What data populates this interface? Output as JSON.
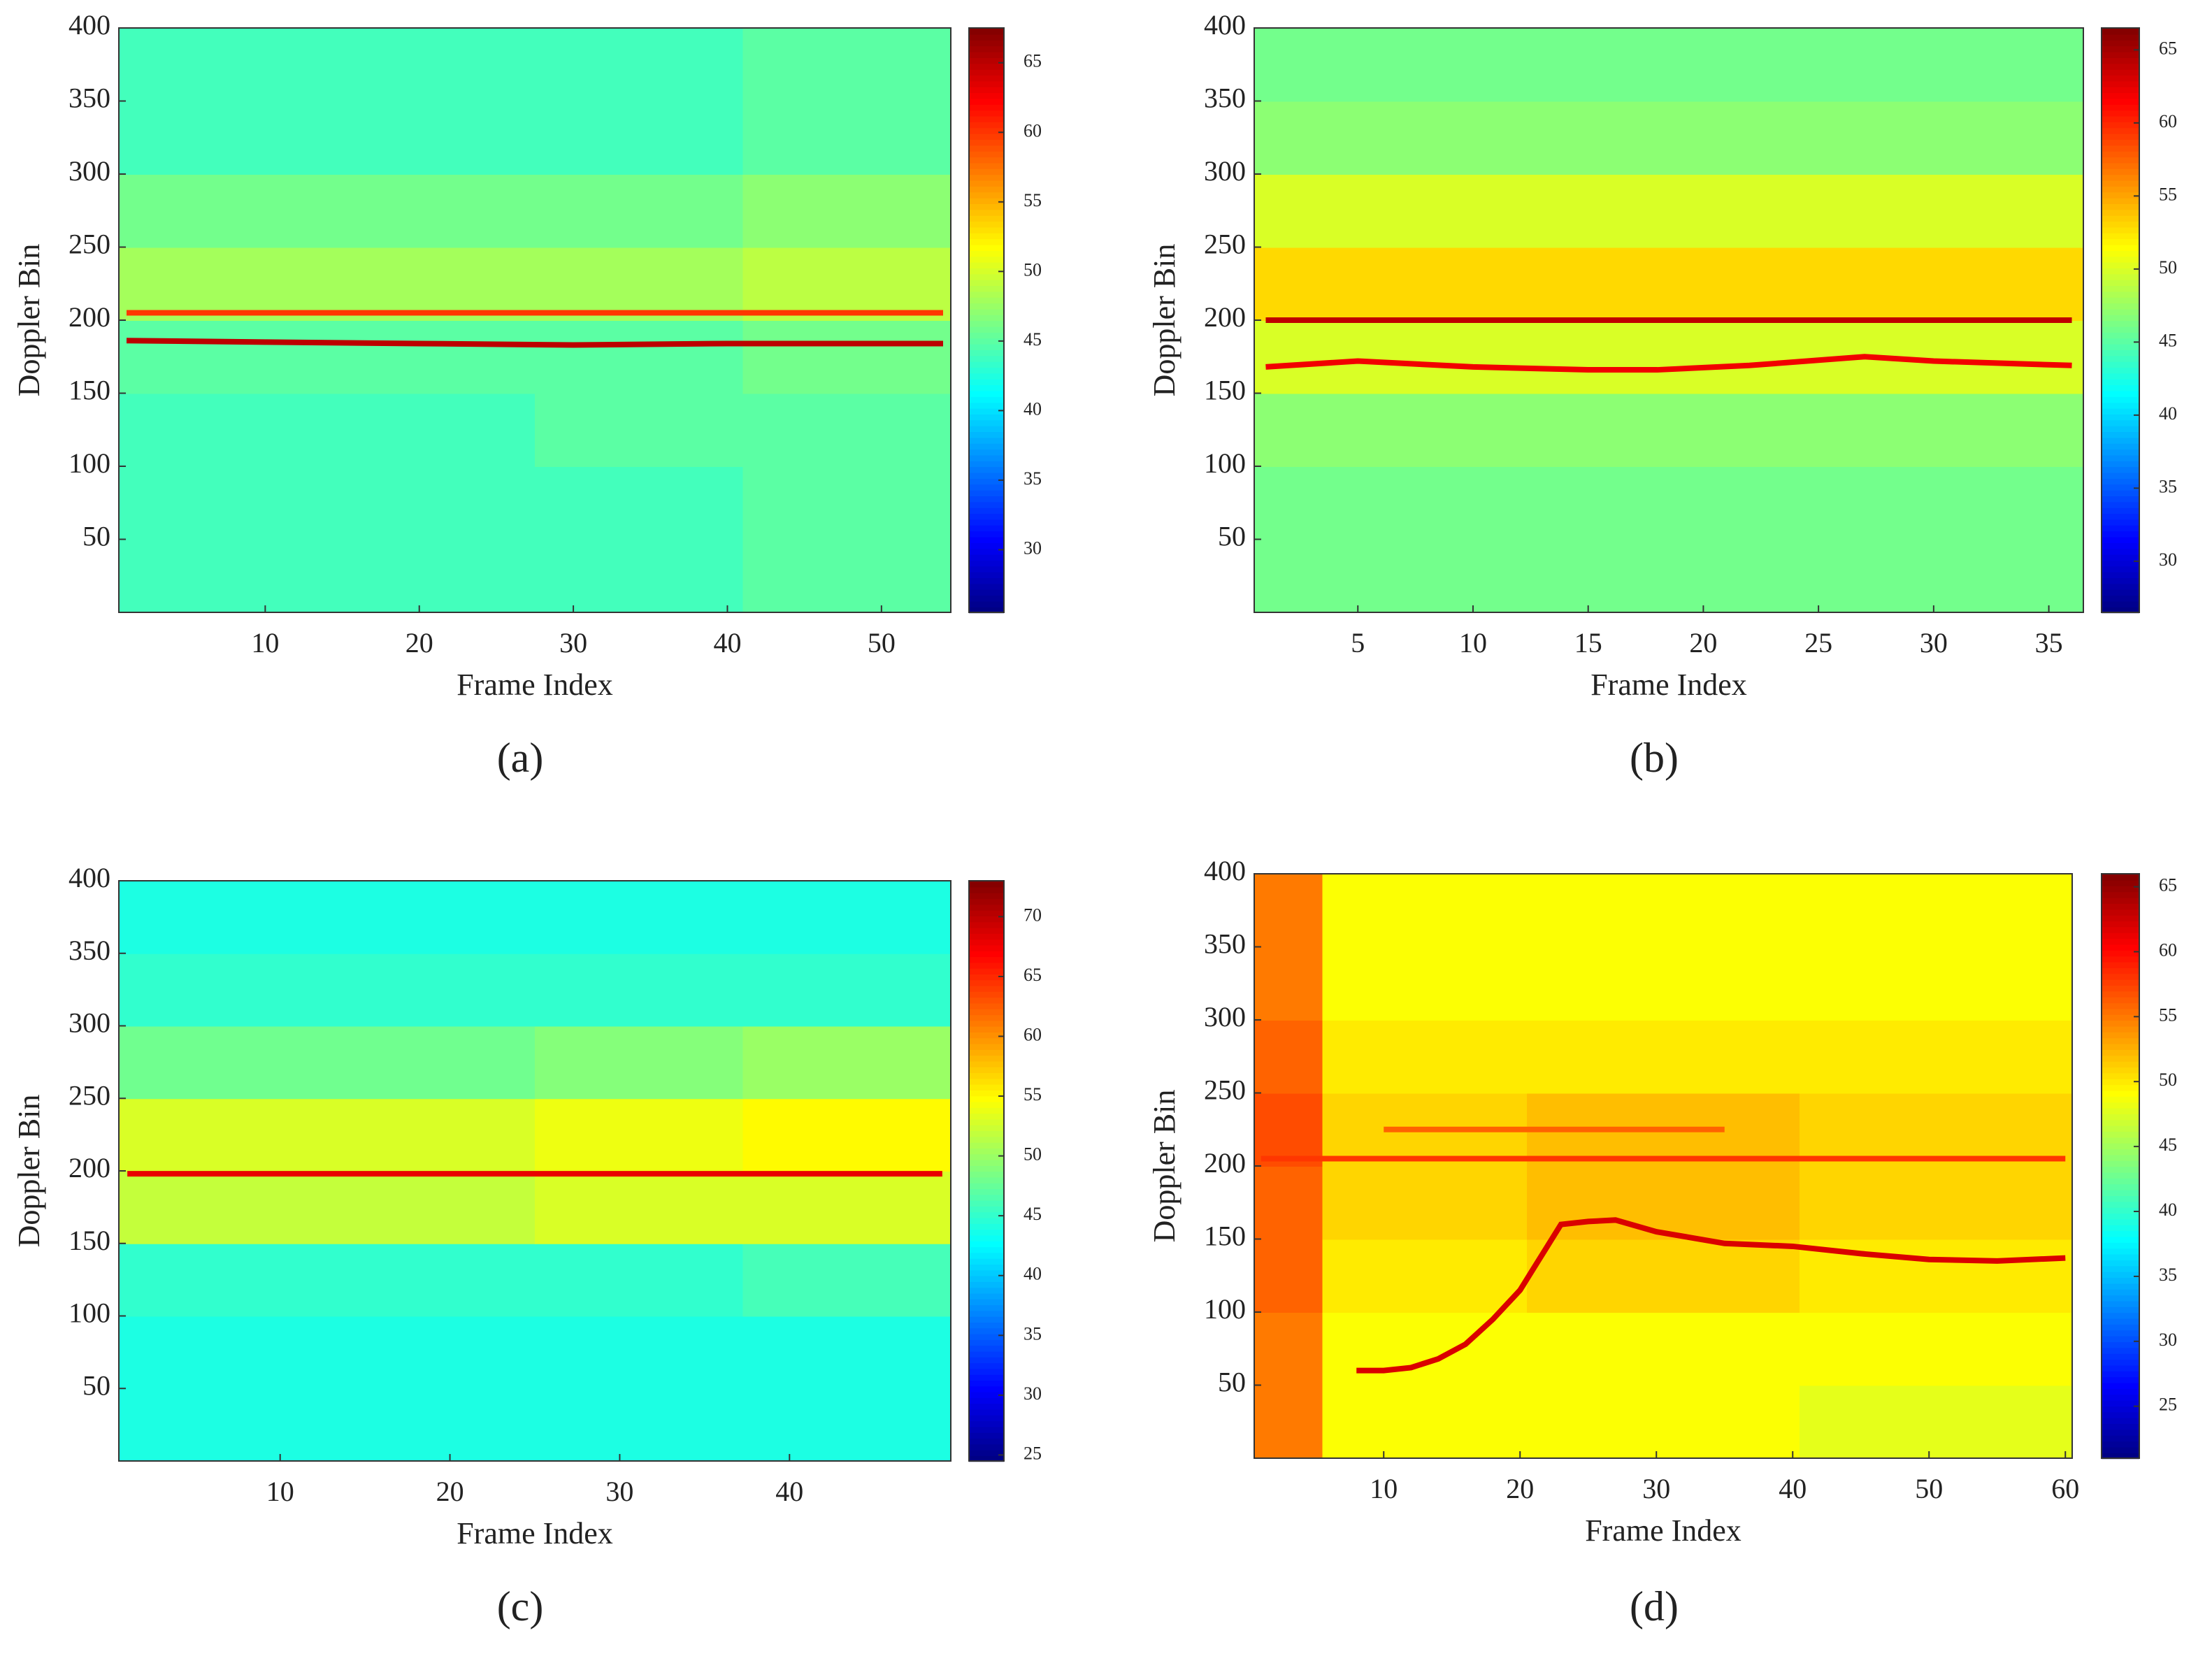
{
  "chart_data": [
    {
      "type": "heatmap",
      "label": "(a)",
      "xlabel": "Frame Index",
      "ylabel": "Doppler Bin",
      "xlim": [
        0.5,
        54.5
      ],
      "ylim": [
        0,
        400
      ],
      "xticks": [
        10,
        20,
        30,
        40,
        50
      ],
      "yticks": [
        50,
        100,
        150,
        200,
        250,
        300,
        350,
        400
      ],
      "clim": [
        25.5,
        67.5
      ],
      "cticks": [
        30,
        35,
        40,
        45,
        50,
        55,
        60,
        65
      ],
      "x_edges": [
        0.5,
        14,
        27.5,
        41,
        54.5
      ],
      "y_edges": [
        0,
        50,
        100,
        150,
        200,
        250,
        300,
        350,
        400
      ],
      "z": [
        [
          44,
          44,
          44,
          45
        ],
        [
          44,
          44,
          44,
          45
        ],
        [
          44,
          44,
          45,
          45
        ],
        [
          45,
          45,
          45,
          46
        ],
        [
          48,
          48,
          48,
          49
        ],
        [
          46,
          46,
          46,
          47
        ],
        [
          44,
          44,
          44,
          45
        ],
        [
          44,
          44,
          44,
          45
        ]
      ],
      "ridges": [
        {
          "value": 60,
          "x": [
            1,
            54
          ],
          "y": [
            205,
            205
          ]
        },
        {
          "value": 65,
          "x": [
            1,
            10,
            20,
            30,
            40,
            54
          ],
          "y": [
            186,
            185,
            184,
            183,
            184,
            184
          ]
        }
      ]
    },
    {
      "type": "heatmap",
      "label": "(b)",
      "xlabel": "Frame Index",
      "ylabel": "Doppler Bin",
      "xlim": [
        0.5,
        36.5
      ],
      "ylim": [
        0,
        400
      ],
      "xticks": [
        5,
        10,
        15,
        20,
        25,
        30,
        35
      ],
      "yticks": [
        50,
        100,
        150,
        200,
        250,
        300,
        350,
        400
      ],
      "clim": [
        26.5,
        66.5
      ],
      "cticks": [
        30,
        35,
        40,
        45,
        50,
        55,
        60,
        65
      ],
      "x_edges": [
        0.5,
        9.5,
        18.5,
        27.5,
        36.5
      ],
      "y_edges": [
        0,
        50,
        100,
        150,
        200,
        250,
        300,
        350,
        400
      ],
      "z": [
        [
          46,
          46,
          46,
          46
        ],
        [
          46,
          46,
          46,
          46
        ],
        [
          47,
          47,
          47,
          47
        ],
        [
          50,
          50,
          50,
          50
        ],
        [
          53,
          53,
          53,
          53
        ],
        [
          50,
          50,
          50,
          50
        ],
        [
          47,
          47,
          47,
          47
        ],
        [
          46,
          46,
          46,
          46
        ]
      ],
      "ridges": [
        {
          "value": 64,
          "x": [
            1,
            36
          ],
          "y": [
            200,
            200
          ]
        },
        {
          "value": 62,
          "x": [
            1,
            5,
            10,
            15,
            18,
            22,
            27,
            30,
            36
          ],
          "y": [
            168,
            172,
            168,
            166,
            166,
            169,
            175,
            172,
            169
          ]
        }
      ]
    },
    {
      "type": "heatmap",
      "label": "(c)",
      "xlabel": "Frame Index",
      "ylabel": "Doppler Bin",
      "xlim": [
        0.5,
        49.5
      ],
      "ylim": [
        0,
        400
      ],
      "xticks": [
        10,
        20,
        30,
        40
      ],
      "yticks": [
        50,
        100,
        150,
        200,
        250,
        300,
        350,
        400
      ],
      "clim": [
        24.5,
        73
      ],
      "cticks": [
        25,
        30,
        35,
        40,
        45,
        50,
        55,
        60,
        65,
        70
      ],
      "x_edges": [
        0.5,
        12.75,
        25,
        37.25,
        49.5
      ],
      "y_edges": [
        0,
        50,
        100,
        150,
        200,
        250,
        300,
        350,
        400
      ],
      "z": [
        [
          44,
          44,
          44,
          44
        ],
        [
          44,
          44,
          44,
          44
        ],
        [
          45,
          45,
          45,
          46
        ],
        [
          52,
          52,
          53,
          53
        ],
        [
          53,
          53,
          54,
          55
        ],
        [
          48,
          48,
          49,
          50
        ],
        [
          45,
          45,
          45,
          45
        ],
        [
          44,
          44,
          44,
          44
        ]
      ],
      "ridges": [
        {
          "value": 68,
          "x": [
            1,
            49
          ],
          "y": [
            198,
            198
          ]
        }
      ]
    },
    {
      "type": "heatmap",
      "label": "(d)",
      "xlabel": "Frame Index",
      "ylabel": "Doppler Bin",
      "xlim": [
        0.5,
        60.5
      ],
      "ylim": [
        0,
        400
      ],
      "xticks": [
        10,
        20,
        30,
        40,
        50,
        60
      ],
      "yticks": [
        50,
        100,
        150,
        200,
        250,
        300,
        350,
        400
      ],
      "clim": [
        21,
        66
      ],
      "cticks": [
        25,
        30,
        35,
        40,
        45,
        50,
        55,
        60,
        65
      ],
      "x_edges": [
        0.5,
        5.5,
        20.5,
        40.5,
        60.5
      ],
      "y_edges": [
        0,
        50,
        100,
        150,
        200,
        250,
        300,
        350,
        400
      ],
      "z": [
        [
          55,
          49,
          49,
          48
        ],
        [
          55,
          49,
          49,
          49
        ],
        [
          56,
          50,
          51,
          50
        ],
        [
          56,
          51,
          52,
          51
        ],
        [
          57,
          51,
          52,
          51
        ],
        [
          56,
          50,
          50,
          50
        ],
        [
          55,
          49,
          49,
          49
        ],
        [
          55,
          49,
          49,
          49
        ]
      ],
      "ridges": [
        {
          "value": 58,
          "x": [
            1,
            60
          ],
          "y": [
            205,
            205
          ]
        },
        {
          "value": 56,
          "x": [
            10,
            35
          ],
          "y": [
            225,
            225
          ]
        },
        {
          "value": 62,
          "x": [
            8,
            10,
            12,
            14,
            16,
            18,
            20,
            21,
            22,
            23,
            25,
            27,
            30,
            35,
            40,
            45,
            50,
            55,
            60
          ],
          "y": [
            60,
            60,
            62,
            68,
            78,
            95,
            115,
            130,
            145,
            160,
            162,
            163,
            155,
            147,
            145,
            140,
            136,
            135,
            137
          ]
        }
      ]
    }
  ]
}
